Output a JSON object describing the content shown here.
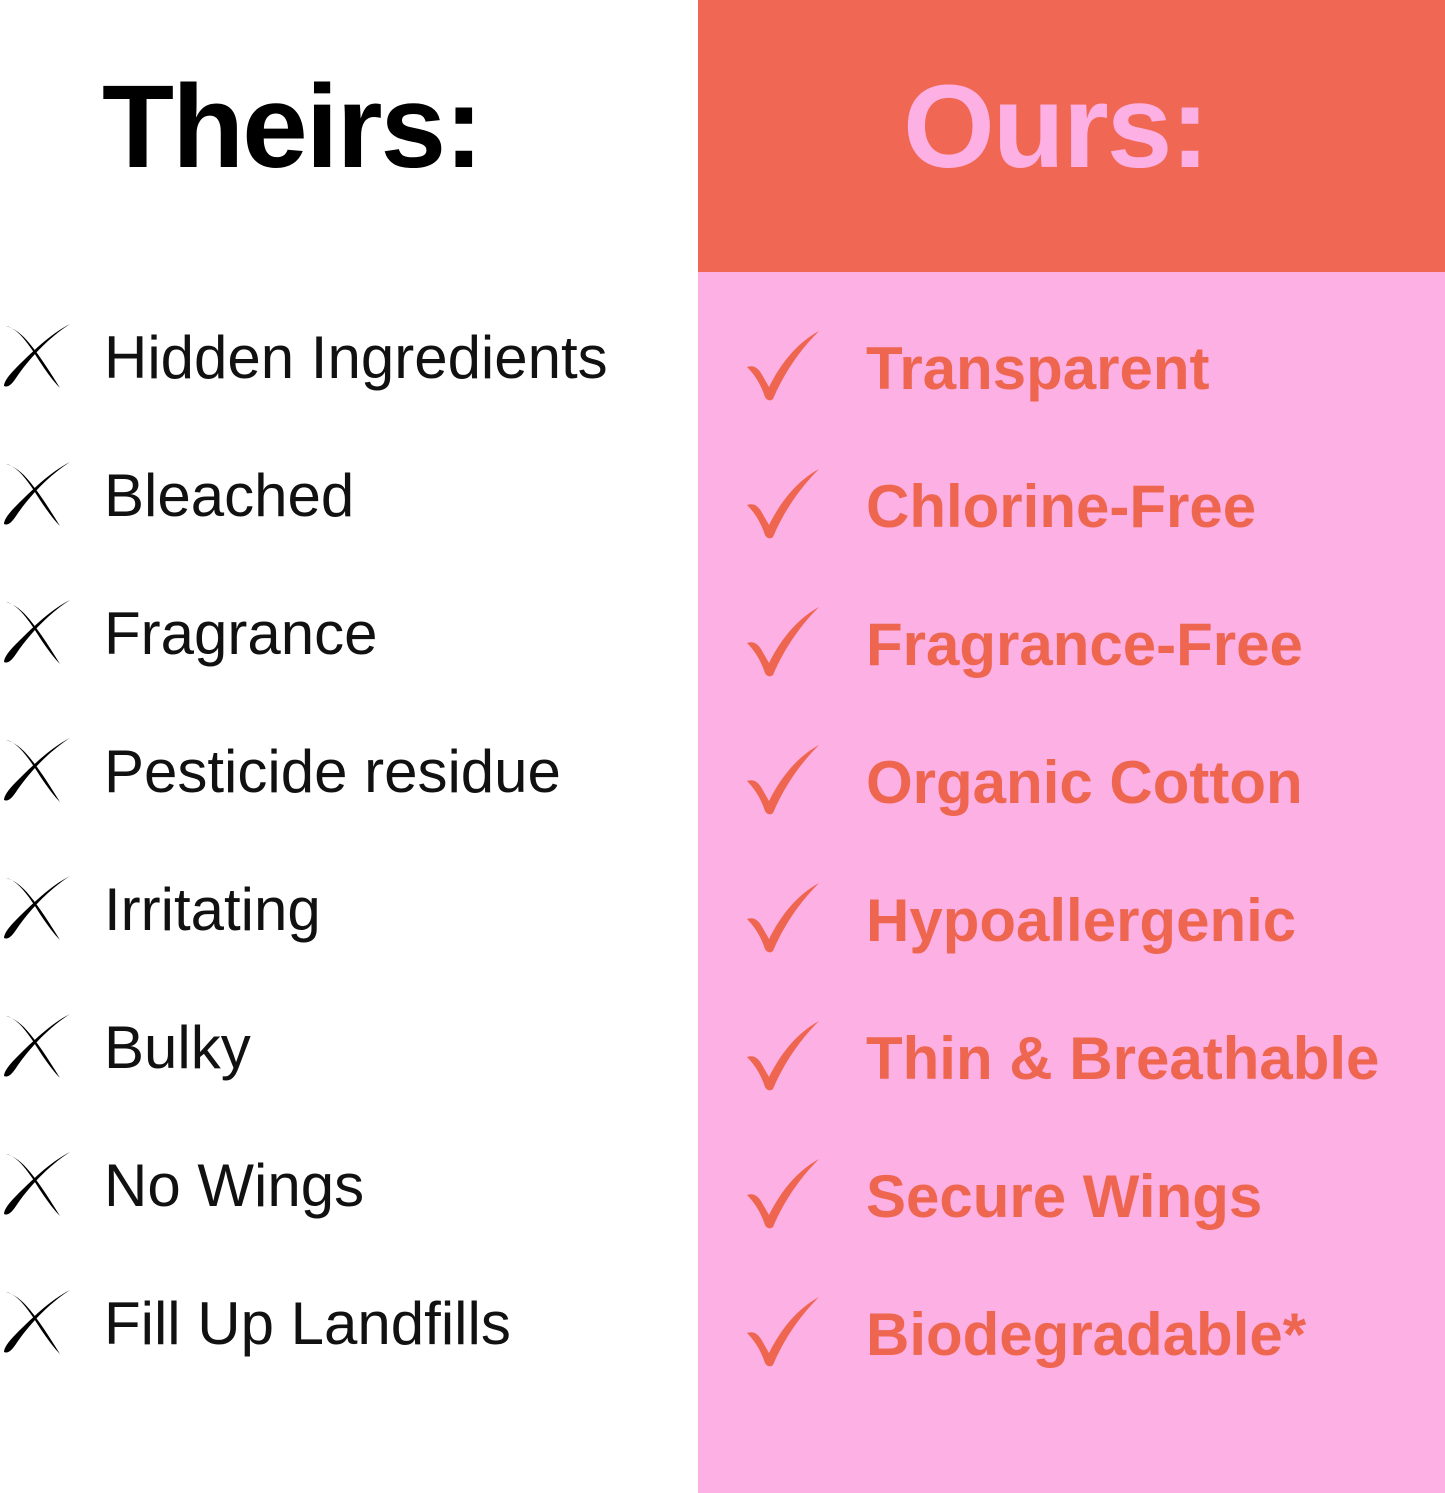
{
  "colors": {
    "header_bg": "#F06853",
    "panel_bg": "#FDB0E3",
    "accent_text": "#EE6650"
  },
  "theirs": {
    "title": "Theirs:",
    "icon": "x-mark-icon",
    "items": [
      "Hidden Ingredients",
      "Bleached",
      "Fragrance",
      "Pesticide residue",
      "Irritating",
      "Bulky",
      "No Wings",
      "Fill Up Landfills"
    ]
  },
  "ours": {
    "title": "Ours:",
    "icon": "checkmark-icon",
    "items": [
      "Transparent",
      "Chlorine-Free",
      "Fragrance-Free",
      "Organic Cotton",
      "Hypoallergenic",
      "Thin & Breathable",
      "Secure Wings",
      "Biodegradable*"
    ]
  }
}
